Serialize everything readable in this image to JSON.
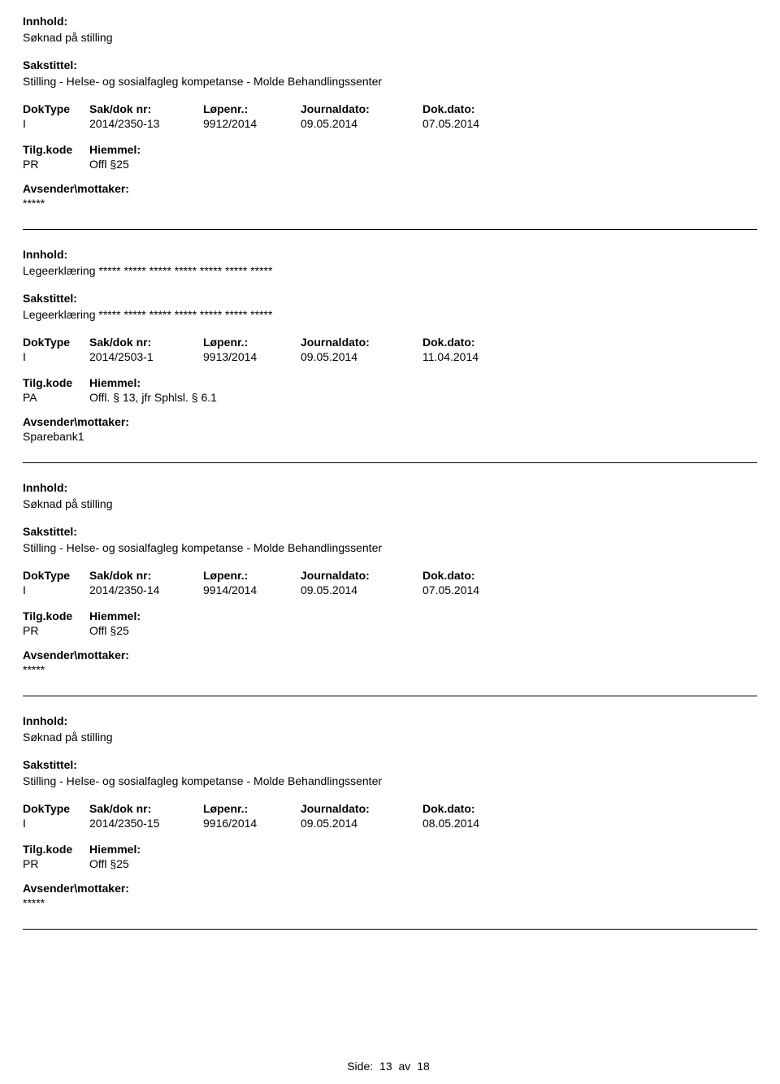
{
  "labels": {
    "innhold": "Innhold:",
    "sakstittel": "Sakstittel:",
    "doktype": "DokType",
    "sakdok": "Sak/dok nr:",
    "lopenr": "Løpenr.:",
    "journaldato": "Journaldato:",
    "dokdato": "Dok.dato:",
    "tilgkode": "Tilg.kode",
    "hiemmel": "Hiemmel:",
    "avsender": "Avsender\\mottaker:"
  },
  "records": [
    {
      "innhold": "Søknad på stilling",
      "sakstittel": "Stilling - Helse- og sosialfagleg kompetanse - Molde Behandlingssenter",
      "doktype": "I",
      "sakdok": "2014/2350-13",
      "lopenr": "9912/2014",
      "journaldato": "09.05.2014",
      "dokdato": "07.05.2014",
      "tilgkode": "PR",
      "hiemmel": "Offl §25",
      "avsender": "*****"
    },
    {
      "innhold": "Legeerklæring ***** ***** ***** ***** ***** ***** *****",
      "sakstittel": "Legeerklæring ***** ***** ***** ***** ***** ***** *****",
      "doktype": "I",
      "sakdok": "2014/2503-1",
      "lopenr": "9913/2014",
      "journaldato": "09.05.2014",
      "dokdato": "11.04.2014",
      "tilgkode": "PA",
      "hiemmel": "Offl. § 13, jfr Sphlsl. § 6.1",
      "avsender": "Sparebank1"
    },
    {
      "innhold": "Søknad på stilling",
      "sakstittel": "Stilling - Helse- og sosialfagleg kompetanse - Molde Behandlingssenter",
      "doktype": "I",
      "sakdok": "2014/2350-14",
      "lopenr": "9914/2014",
      "journaldato": "09.05.2014",
      "dokdato": "07.05.2014",
      "tilgkode": "PR",
      "hiemmel": "Offl §25",
      "avsender": "*****"
    },
    {
      "innhold": "Søknad på stilling",
      "sakstittel": "Stilling - Helse- og sosialfagleg kompetanse - Molde Behandlingssenter",
      "doktype": "I",
      "sakdok": "2014/2350-15",
      "lopenr": "9916/2014",
      "journaldato": "09.05.2014",
      "dokdato": "08.05.2014",
      "tilgkode": "PR",
      "hiemmel": "Offl §25",
      "avsender": "*****"
    }
  ],
  "footer": {
    "side_label": "Side:",
    "current": "13",
    "sep": "av",
    "total": "18"
  }
}
